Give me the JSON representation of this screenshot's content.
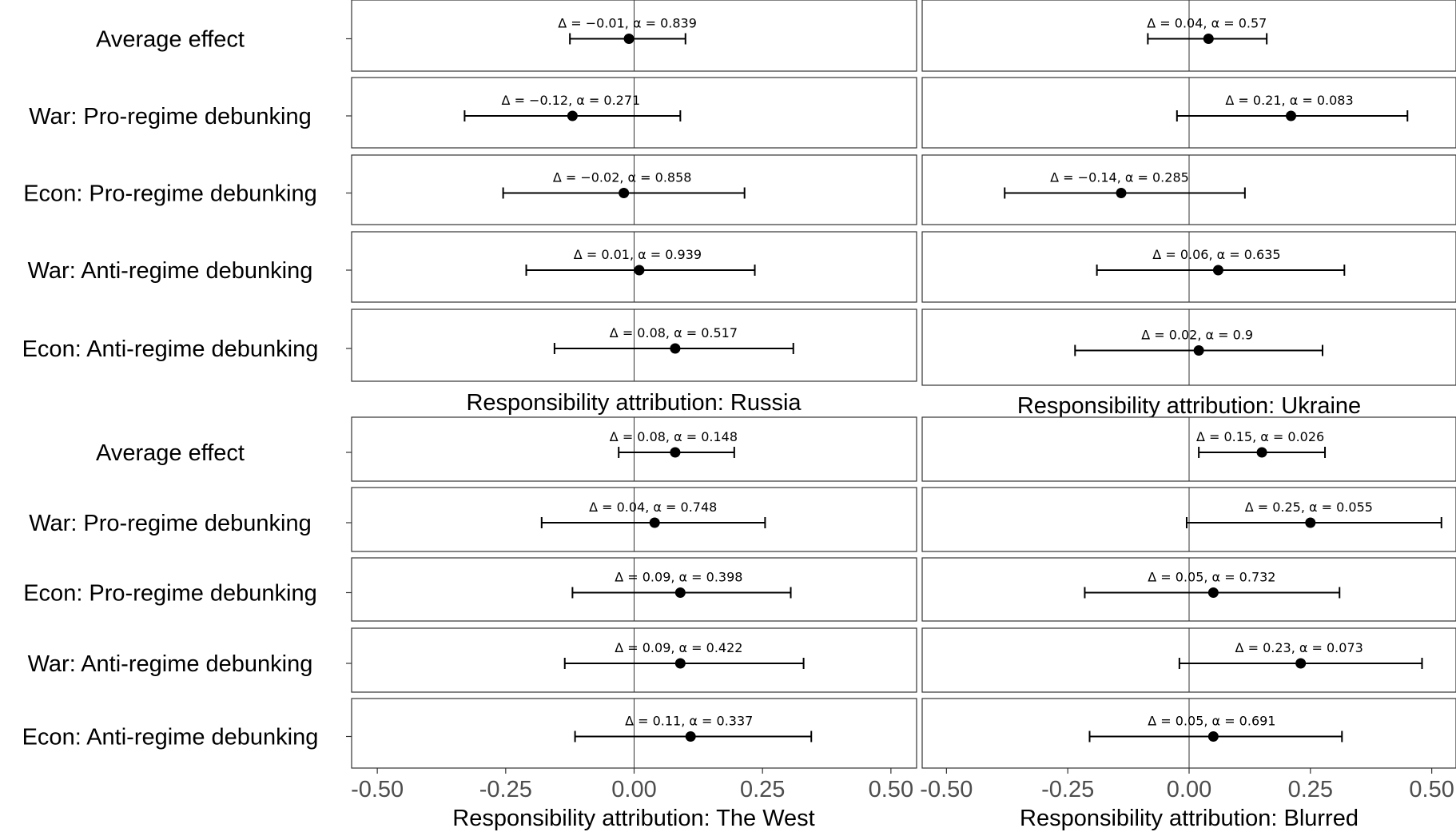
{
  "chart_data": [
    {
      "type": "forest",
      "title": "Responsibility attribution: Russia",
      "xlim": [
        -0.55,
        0.55
      ],
      "xticks": [
        -0.5,
        -0.25,
        0.0,
        0.25,
        0.5
      ],
      "rows": [
        {
          "label": "Average effect",
          "estimate": -0.01,
          "ci_low": -0.125,
          "ci_high": 0.1,
          "annotation": "Δ = −0.01, α = 0.839"
        },
        {
          "label": "War: Pro-regime debunking",
          "estimate": -0.12,
          "ci_low": -0.33,
          "ci_high": 0.09,
          "annotation": "Δ = −0.12, α = 0.271"
        },
        {
          "label": "Econ: Pro-regime debunking",
          "estimate": -0.02,
          "ci_low": -0.255,
          "ci_high": 0.215,
          "annotation": "Δ = −0.02, α = 0.858"
        },
        {
          "label": "War: Anti-regime debunking",
          "estimate": 0.01,
          "ci_low": -0.21,
          "ci_high": 0.235,
          "annotation": "Δ = 0.01, α = 0.939"
        },
        {
          "label": "Econ: Anti-regime debunking",
          "estimate": 0.08,
          "ci_low": -0.155,
          "ci_high": 0.31,
          "annotation": "Δ = 0.08, α = 0.517"
        }
      ]
    },
    {
      "type": "forest",
      "title": "Responsibility attribution: Ukraine",
      "xlim": [
        -0.55,
        0.55
      ],
      "xticks": [
        -0.5,
        -0.25,
        0.0,
        0.25,
        0.5
      ],
      "rows": [
        {
          "label": "Average effect",
          "estimate": 0.04,
          "ci_low": -0.085,
          "ci_high": 0.16,
          "annotation": "Δ = 0.04, α = 0.57"
        },
        {
          "label": "War: Pro-regime debunking",
          "estimate": 0.21,
          "ci_low": -0.025,
          "ci_high": 0.45,
          "annotation": "Δ = 0.21, α = 0.083"
        },
        {
          "label": "Econ: Pro-regime debunking",
          "estimate": -0.14,
          "ci_low": -0.38,
          "ci_high": 0.115,
          "annotation": "Δ = −0.14, α = 0.285"
        },
        {
          "label": "War: Anti-regime debunking",
          "estimate": 0.06,
          "ci_low": -0.19,
          "ci_high": 0.32,
          "annotation": "Δ = 0.06, α = 0.635"
        },
        {
          "label": "Econ: Anti-regime debunking",
          "estimate": 0.02,
          "ci_low": -0.235,
          "ci_high": 0.275,
          "annotation": "Δ = 0.02, α = 0.9"
        }
      ]
    },
    {
      "type": "forest",
      "title": "Responsibility attribution: The West",
      "xlim": [
        -0.55,
        0.55
      ],
      "xticks": [
        -0.5,
        -0.25,
        0.0,
        0.25,
        0.5
      ],
      "rows": [
        {
          "label": "Average effect",
          "estimate": 0.08,
          "ci_low": -0.03,
          "ci_high": 0.195,
          "annotation": "Δ = 0.08, α = 0.148"
        },
        {
          "label": "War: Pro-regime debunking",
          "estimate": 0.04,
          "ci_low": -0.18,
          "ci_high": 0.255,
          "annotation": "Δ = 0.04, α = 0.748"
        },
        {
          "label": "Econ: Pro-regime debunking",
          "estimate": 0.09,
          "ci_low": -0.12,
          "ci_high": 0.305,
          "annotation": "Δ = 0.09, α = 0.398"
        },
        {
          "label": "War: Anti-regime debunking",
          "estimate": 0.09,
          "ci_low": -0.135,
          "ci_high": 0.33,
          "annotation": "Δ = 0.09, α = 0.422"
        },
        {
          "label": "Econ: Anti-regime debunking",
          "estimate": 0.11,
          "ci_low": -0.115,
          "ci_high": 0.345,
          "annotation": "Δ = 0.11, α = 0.337"
        }
      ]
    },
    {
      "type": "forest",
      "title": "Responsibility attribution: Blurred",
      "xlim": [
        -0.55,
        0.55
      ],
      "xticks": [
        -0.5,
        -0.25,
        0.0,
        0.25,
        0.5
      ],
      "rows": [
        {
          "label": "Average effect",
          "estimate": 0.15,
          "ci_low": 0.02,
          "ci_high": 0.28,
          "annotation": "Δ = 0.15, α = 0.026"
        },
        {
          "label": "War: Pro-regime debunking",
          "estimate": 0.25,
          "ci_low": -0.005,
          "ci_high": 0.52,
          "annotation": "Δ = 0.25, α = 0.055"
        },
        {
          "label": "Econ: Pro-regime debunking",
          "estimate": 0.05,
          "ci_low": -0.215,
          "ci_high": 0.31,
          "annotation": "Δ = 0.05, α = 0.732"
        },
        {
          "label": "War: Anti-regime debunking",
          "estimate": 0.23,
          "ci_low": -0.02,
          "ci_high": 0.48,
          "annotation": "Δ = 0.23, α = 0.073"
        },
        {
          "label": "Econ: Anti-regime debunking",
          "estimate": 0.05,
          "ci_low": -0.205,
          "ci_high": 0.315,
          "annotation": "Δ = 0.05, α = 0.691"
        }
      ]
    }
  ],
  "tick_labels": [
    "-0.50",
    "-0.25",
    "0.00",
    "0.25",
    "0.50"
  ]
}
